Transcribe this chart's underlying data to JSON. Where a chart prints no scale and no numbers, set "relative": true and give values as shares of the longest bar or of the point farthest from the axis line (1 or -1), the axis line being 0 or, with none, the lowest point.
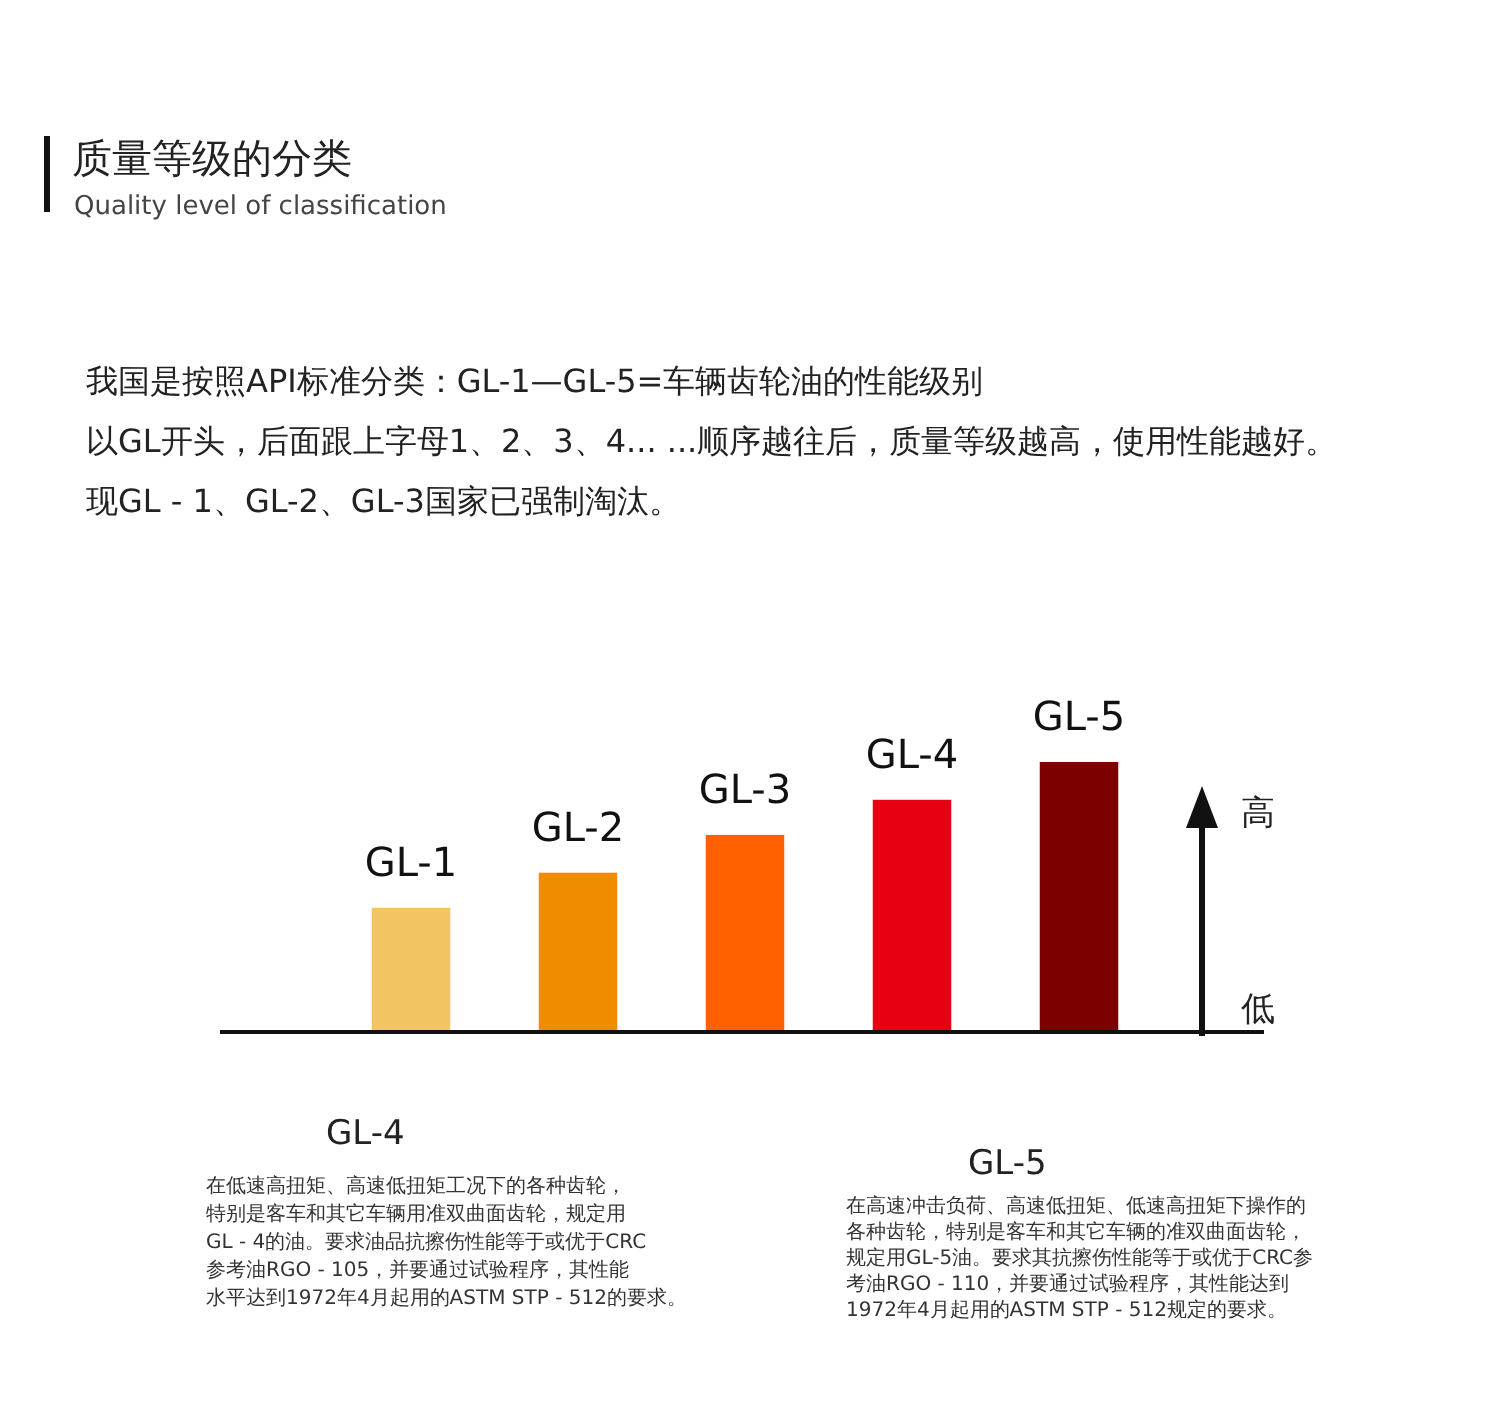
{
  "chart_data": {
    "type": "bar",
    "relative": true,
    "title": "质量等级的分类",
    "subtitle": "Quality level of classification",
    "categories": [
      "GL-1",
      "GL-2",
      "GL-3",
      "GL-4",
      "GL-5"
    ],
    "values": [
      0.46,
      0.59,
      0.73,
      0.86,
      1
    ],
    "colors": [
      "#f3c562",
      "#f08c00",
      "#ff6100",
      "#e60012",
      "#7d0000"
    ],
    "annotations": [
      "我国是按照API标准分类：GL-1—GL-5=车辆齿轮油的性能级别",
      "以GL开头，后面跟上字母1、2、3、4... ...顺序越往后，质量等级越高，使用性能越好。",
      "现GL - 1、GL-2、GL-3国家已强制淘汰。",
      "高",
      "低",
      "GL-4",
      "在低速高扭矩、高速低扭矩工况下的各种齿轮，",
      "特别是客车和其它车辆用准双曲面齿轮，规定用",
      "GL - 4的油。要求油品抗擦伤性能等于或优于CRC",
      "参考油RGO - 105，并要通过试验程序，其性能",
      "水平达到1972年4月起用的ASTM STP - 512的要求。",
      "GL-5",
      "在高速冲击负荷、高速低扭矩、低速高扭矩下操作的",
      "各种齿轮，特别是客车和其它车辆的准双曲面齿轮，",
      "规定用GL-5油。要求其抗擦伤性能等于或优于CRC参",
      "考油RGO - 110，并要通过试验程序，其性能达到",
      "1972年4月起用的ASTM STP - 512规定的要求。"
    ]
  }
}
